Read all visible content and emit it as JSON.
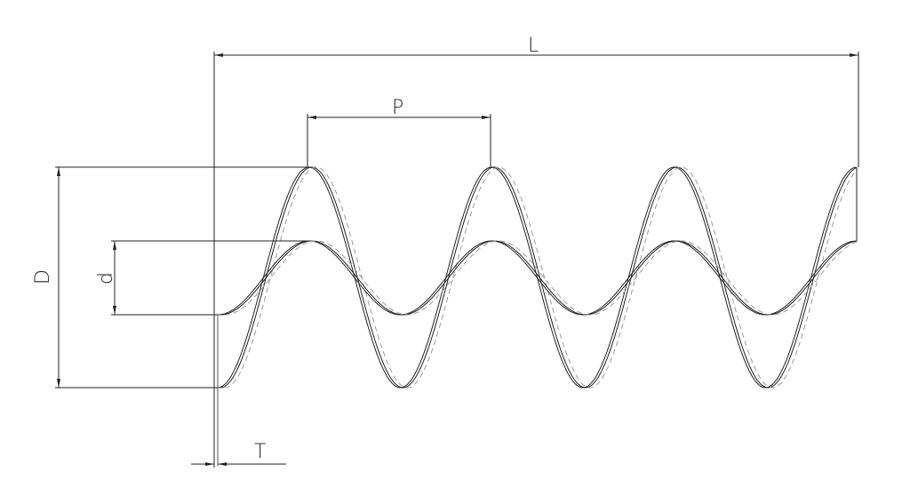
{
  "labels": {
    "length": "L",
    "pitch": "P",
    "outer_diameter": "D",
    "inner_diameter": "d",
    "thickness": "T"
  },
  "colors": {
    "line": "#222222",
    "hidden_line": "#9a9a9a"
  },
  "turns": 3.5
}
